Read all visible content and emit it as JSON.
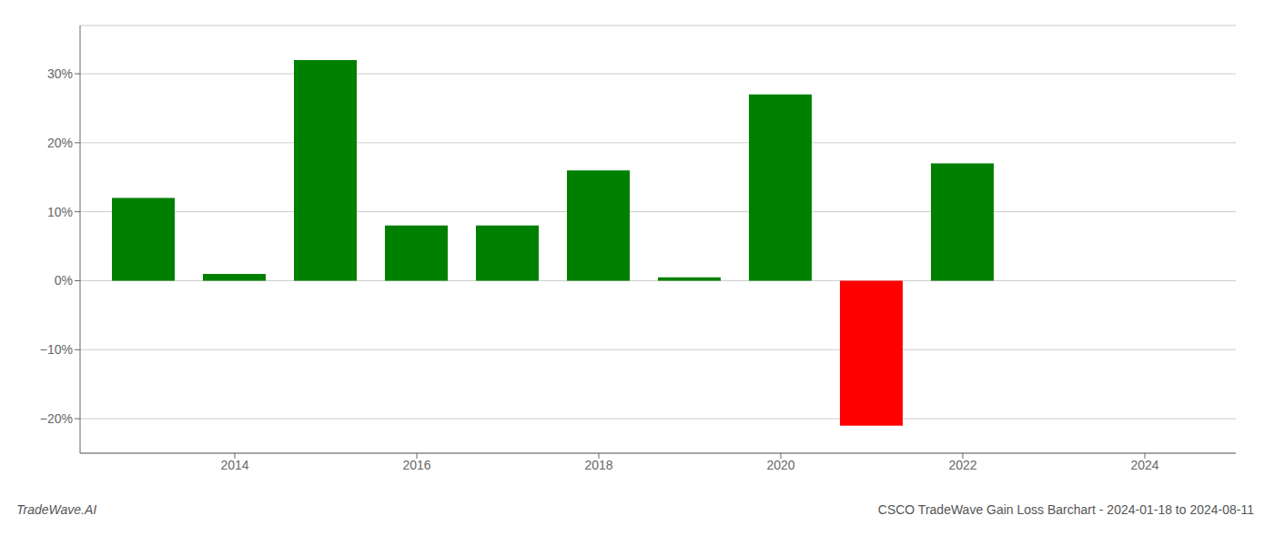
{
  "chart_data": {
    "type": "bar",
    "x": [
      2013,
      2014,
      2015,
      2016,
      2017,
      2018,
      2019,
      2020,
      2021,
      2022,
      2023
    ],
    "values": [
      0.12,
      0.01,
      0.32,
      0.08,
      0.08,
      0.16,
      0.005,
      0.27,
      -0.21,
      0.17,
      0.0
    ],
    "colors": [
      "#008000",
      "#008000",
      "#008000",
      "#008000",
      "#008000",
      "#008000",
      "#008000",
      "#008000",
      "#ff0000",
      "#008000",
      "#008000"
    ],
    "xlim": [
      2012.3,
      2025.0
    ],
    "xticks": [
      2014,
      2016,
      2018,
      2020,
      2022,
      2024
    ],
    "ylim": [
      -0.25,
      0.37
    ],
    "yticks": [
      {
        "value": -0.2,
        "label": "−20%"
      },
      {
        "value": -0.1,
        "label": "−10%"
      },
      {
        "value": 0.0,
        "label": "0%"
      },
      {
        "value": 0.1,
        "label": "10%"
      },
      {
        "value": 0.2,
        "label": "20%"
      },
      {
        "value": 0.3,
        "label": "30%"
      }
    ],
    "grid": true,
    "annotations": [
      "TradeWave.AI",
      "CSCO TradeWave Gain Loss Barchart - 2024-01-18 to 2024-08-11"
    ]
  }
}
